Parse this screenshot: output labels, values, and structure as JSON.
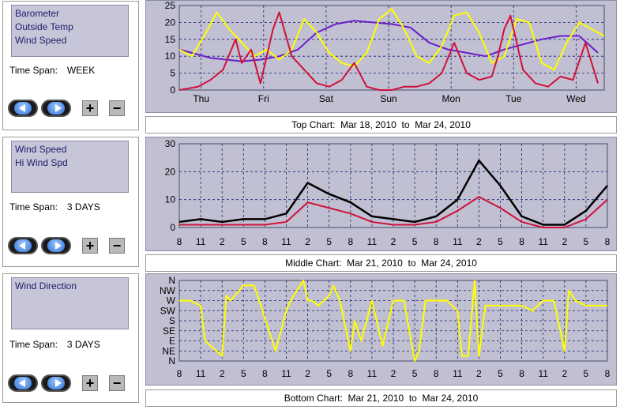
{
  "panels": [
    {
      "items": [
        "Barometer",
        "Outside Temp",
        "Wind Speed"
      ],
      "time_span_label": "Time Span:",
      "time_span_value": "WEEK",
      "caption": {
        "prefix": "Top Chart:",
        "from": "Mar 18, 2010",
        "to_word": "to",
        "to": "Mar 24, 2010"
      }
    },
    {
      "items": [
        "Wind Speed",
        "Hi Wind Spd"
      ],
      "time_span_label": "Time Span:",
      "time_span_value": "3 DAYS",
      "caption": {
        "prefix": "Middle Chart:",
        "from": "Mar 21, 2010",
        "to_word": "to",
        "to": "Mar 24, 2010"
      }
    },
    {
      "items": [
        "Wind Direction"
      ],
      "time_span_label": "Time Span:",
      "time_span_value": "3 DAYS",
      "caption": {
        "prefix": "Bottom Chart:",
        "from": "Mar 21, 2010",
        "to_word": "to",
        "to": "Mar 24, 2010"
      }
    }
  ],
  "buttons": {
    "prev_icon": "left-arrow-icon",
    "next_icon": "right-arrow-icon",
    "zoom_in": "+",
    "zoom_out": "−"
  },
  "colors": {
    "plot_bg": "#c0c0d2",
    "barometer": "#6a1ec8",
    "temp": "#ffff00",
    "wind": "#d0103a",
    "hi_wind": "#000000",
    "direction": "#ffff00"
  },
  "chart_data": [
    {
      "type": "line",
      "ylim": [
        0,
        25
      ],
      "yticks": [
        "0",
        "5",
        "10",
        "15",
        "20",
        "25"
      ],
      "xticks": [
        "Thu",
        "Fri",
        "Sat",
        "Sun",
        "Mon",
        "Tue",
        "Wed"
      ],
      "grid": true,
      "series": [
        {
          "key": "barometer",
          "x": [
            0,
            0.5,
            1,
            1.3,
            1.6,
            1.9,
            2.2,
            2.5,
            2.8,
            3.1,
            3.4,
            3.7,
            4,
            4.3,
            4.6,
            4.9,
            5.2,
            5.5,
            5.8,
            6.1,
            6.4,
            6.7
          ],
          "values": [
            12,
            9.5,
            8.5,
            9,
            10,
            12,
            17,
            19.5,
            20.5,
            20,
            19.5,
            18.5,
            14,
            12,
            11,
            10,
            12,
            13.5,
            15,
            16,
            16,
            11
          ]
        },
        {
          "key": "temp",
          "x": [
            0,
            0.2,
            0.4,
            0.6,
            0.8,
            1.0,
            1.2,
            1.4,
            1.6,
            1.8,
            2.0,
            2.2,
            2.4,
            2.6,
            2.8,
            3.0,
            3.2,
            3.4,
            3.6,
            3.8,
            4.0,
            4.2,
            4.4,
            4.6,
            4.8,
            5.0,
            5.2,
            5.4,
            5.6,
            5.8,
            6.0,
            6.2,
            6.4,
            6.6,
            6.8
          ],
          "values": [
            12,
            10,
            16,
            23,
            18,
            14,
            10,
            12,
            9,
            12,
            21,
            17,
            11,
            8,
            7,
            11,
            21,
            24,
            18,
            10,
            8,
            13,
            22,
            23,
            17,
            8,
            10,
            21,
            20,
            8,
            6,
            14,
            20,
            18,
            16
          ]
        },
        {
          "key": "wind",
          "x": [
            0,
            0.3,
            0.5,
            0.7,
            0.9,
            1.0,
            1.15,
            1.3,
            1.5,
            1.6,
            1.8,
            2.0,
            2.2,
            2.4,
            2.6,
            2.8,
            3.0,
            3.2,
            3.4,
            3.6,
            3.8,
            4.0,
            4.2,
            4.4,
            4.6,
            4.8,
            5.0,
            5.1,
            5.2,
            5.3,
            5.5,
            5.7,
            5.9,
            6.1,
            6.3,
            6.5,
            6.7
          ],
          "values": [
            0,
            1,
            3,
            6,
            15,
            8,
            12,
            2,
            18,
            23,
            10,
            6,
            2,
            1,
            3,
            8,
            1,
            0,
            0,
            1,
            1,
            2,
            5,
            14,
            5,
            3,
            4,
            10,
            18,
            22,
            6,
            2,
            1,
            4,
            3,
            14,
            2
          ]
        }
      ]
    },
    {
      "type": "line",
      "ylim": [
        0,
        30
      ],
      "yticks": [
        "0",
        "10",
        "20",
        "30"
      ],
      "xticks": [
        "8",
        "11",
        "2",
        "5",
        "8",
        "11",
        "2",
        "5",
        "8",
        "11",
        "2",
        "5",
        "8",
        "11",
        "2",
        "5",
        "8",
        "11",
        "2",
        "5",
        "8"
      ],
      "grid": true,
      "series": [
        {
          "key": "hi_wind",
          "x": [
            0,
            1,
            2,
            3,
            4,
            5,
            6,
            7,
            8,
            9,
            10,
            11,
            12,
            13,
            14,
            15,
            16,
            17,
            18,
            19,
            20
          ],
          "values": [
            2,
            3,
            2,
            3,
            3,
            5,
            16,
            12,
            9,
            4,
            3,
            2,
            4,
            10,
            24,
            15,
            4,
            1,
            1,
            6,
            15
          ]
        },
        {
          "key": "wind",
          "x": [
            0,
            1,
            2,
            3,
            4,
            5,
            6,
            7,
            8,
            9,
            10,
            11,
            12,
            13,
            14,
            15,
            16,
            17,
            18,
            19,
            20
          ],
          "values": [
            1,
            1,
            1,
            1,
            1,
            2,
            9,
            7,
            5,
            2,
            1,
            1,
            2,
            6,
            11,
            7,
            2,
            0,
            0,
            3,
            10
          ]
        }
      ]
    },
    {
      "type": "line",
      "ylim": [
        0,
        8
      ],
      "yticks": [
        "N",
        "NE",
        "E",
        "SE",
        "S",
        "SW",
        "W",
        "NW",
        "N"
      ],
      "xticks": [
        "8",
        "11",
        "2",
        "5",
        "8",
        "11",
        "2",
        "5",
        "8",
        "11",
        "2",
        "5",
        "8",
        "11",
        "2",
        "5",
        "8",
        "11",
        "2",
        "5",
        "8"
      ],
      "grid": true,
      "series": [
        {
          "key": "direction",
          "x": [
            0,
            0.5,
            1,
            1.2,
            2,
            2.2,
            2.4,
            3,
            3.5,
            4.5,
            5,
            5.2,
            5.8,
            6,
            6.2,
            6.5,
            7,
            7.2,
            7.5,
            8,
            8.2,
            8.5,
            9,
            9.5,
            10,
            10.5,
            11,
            11.2,
            11.5,
            12,
            12.5,
            13,
            13.2,
            13.5,
            13.8,
            14,
            14.3,
            14.5,
            15,
            15.2,
            15.5,
            16,
            16.5,
            17,
            17.5,
            18,
            18.2,
            18.5,
            19,
            19.5,
            20
          ],
          "values": [
            6,
            6,
            5.5,
            2,
            0.5,
            6.5,
            6,
            7.5,
            7.5,
            1,
            5,
            6,
            8,
            6,
            6,
            5.5,
            6.5,
            7.5,
            6,
            1,
            4,
            2,
            6,
            1.5,
            6,
            6,
            0,
            1,
            6,
            6,
            6,
            5,
            0.5,
            0.5,
            8,
            0.5,
            5.5,
            5.5,
            5.5,
            5.5,
            5.5,
            5.5,
            5,
            6,
            6,
            1,
            7,
            6,
            5.5,
            5.5,
            5.5
          ]
        }
      ]
    }
  ]
}
